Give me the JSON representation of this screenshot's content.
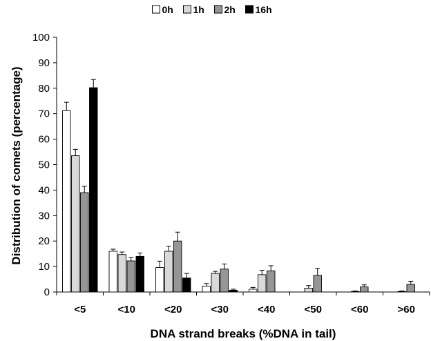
{
  "chart_data": {
    "type": "bar",
    "title": "",
    "xlabel": "DNA strand breaks (%DNA in tail)",
    "ylabel": "Distribution of comets  (percentage)",
    "categories": [
      "<5",
      "<10",
      "<20",
      "<30",
      "<40",
      "<50",
      "<60",
      ">60"
    ],
    "ylim": [
      0,
      100
    ],
    "yticks": [
      0,
      10,
      20,
      30,
      40,
      50,
      60,
      70,
      80,
      90,
      100
    ],
    "grid": false,
    "legend_position": "top",
    "series": [
      {
        "name": "0h",
        "color": "#ffffff",
        "values": [
          71.2,
          16.0,
          9.6,
          2.3,
          1.1,
          0.0,
          0.0,
          0.0
        ],
        "errors": [
          3.3,
          0.8,
          2.5,
          1.0,
          0.7,
          0.0,
          0.0,
          0.0
        ]
      },
      {
        "name": "1h",
        "color": "#d9d9d9",
        "values": [
          53.5,
          14.7,
          16.0,
          7.3,
          6.8,
          1.5,
          0.2,
          0.2
        ],
        "errors": [
          2.5,
          1.0,
          2.0,
          0.8,
          1.7,
          1.0,
          0.2,
          0.2
        ]
      },
      {
        "name": "2h",
        "color": "#969696",
        "values": [
          39.0,
          12.2,
          20.0,
          9.0,
          8.3,
          6.5,
          2.0,
          3.0
        ],
        "errors": [
          2.5,
          1.3,
          3.5,
          2.0,
          2.0,
          2.8,
          0.8,
          1.2
        ]
      },
      {
        "name": "16h",
        "color": "#000000",
        "values": [
          80.2,
          14.0,
          5.5,
          0.7,
          0.0,
          0.0,
          0.0,
          0.0
        ],
        "errors": [
          3.2,
          1.3,
          1.8,
          0.4,
          0.0,
          0.0,
          0.0,
          0.0
        ]
      }
    ]
  }
}
